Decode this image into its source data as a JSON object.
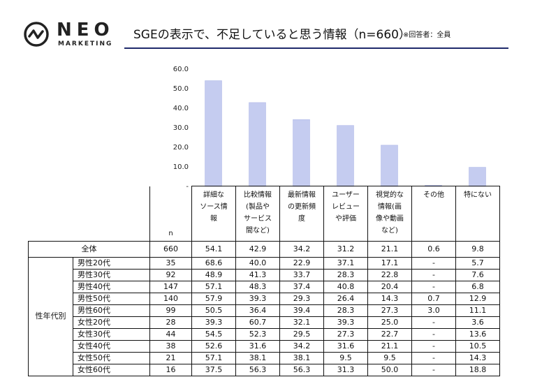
{
  "brand": {
    "name": "NEO",
    "sub": "MARKETING"
  },
  "title": "SGEの表示で、不足していると思う情報（n=660）",
  "note": "※回答者：全員",
  "colors": {
    "bar": "#c5ccf0",
    "bar_stroke": "#a9b3e6",
    "rule": "#1f2a6b"
  },
  "chart_data": {
    "type": "bar",
    "categories": [
      "詳細なソース情報",
      "比較情報(製品やサービス間など)",
      "最新情報の更新頻度",
      "ユーザーレビューや評価",
      "視覚的な情報(画像や動画など)",
      "その他",
      "特にない"
    ],
    "values": [
      54.1,
      42.9,
      34.2,
      31.2,
      21.1,
      0.6,
      9.8
    ],
    "ylim": [
      0,
      60
    ],
    "yticks": [
      "-",
      "10.0",
      "20.0",
      "30.0",
      "40.0",
      "50.0",
      "60.0"
    ],
    "xlabel": "",
    "ylabel": ""
  },
  "table": {
    "n_label": "n",
    "headers": [
      [
        "詳細な",
        "ソース情",
        "報"
      ],
      [
        "比較情報",
        "(製品や",
        "サービス",
        "間など)"
      ],
      [
        "最新情報",
        "の更新頻",
        "度"
      ],
      [
        "ユーザー",
        "レビュー",
        "や評価"
      ],
      [
        "視覚的な",
        "情報(画",
        "像や動画",
        "など)"
      ],
      [
        "その他"
      ],
      [
        "特にない"
      ]
    ],
    "total": {
      "label": "全体",
      "n": "660",
      "values": [
        "54.1",
        "42.9",
        "34.2",
        "31.2",
        "21.1",
        "0.6",
        "9.8"
      ]
    },
    "group_label": "性年代別",
    "rows": [
      {
        "label": "男性20代",
        "n": "35",
        "values": [
          "68.6",
          "40.0",
          "22.9",
          "37.1",
          "17.1",
          "-",
          "5.7"
        ]
      },
      {
        "label": "男性30代",
        "n": "92",
        "values": [
          "48.9",
          "41.3",
          "33.7",
          "28.3",
          "22.8",
          "-",
          "7.6"
        ]
      },
      {
        "label": "男性40代",
        "n": "147",
        "values": [
          "57.1",
          "48.3",
          "37.4",
          "40.8",
          "20.4",
          "-",
          "6.8"
        ]
      },
      {
        "label": "男性50代",
        "n": "140",
        "values": [
          "57.9",
          "39.3",
          "29.3",
          "26.4",
          "14.3",
          "0.7",
          "12.9"
        ]
      },
      {
        "label": "男性60代",
        "n": "99",
        "values": [
          "50.5",
          "36.4",
          "39.4",
          "28.3",
          "27.3",
          "3.0",
          "11.1"
        ]
      },
      {
        "label": "女性20代",
        "n": "28",
        "values": [
          "39.3",
          "60.7",
          "32.1",
          "39.3",
          "25.0",
          "-",
          "3.6"
        ]
      },
      {
        "label": "女性30代",
        "n": "44",
        "values": [
          "54.5",
          "52.3",
          "29.5",
          "27.3",
          "22.7",
          "-",
          "13.6"
        ]
      },
      {
        "label": "女性40代",
        "n": "38",
        "values": [
          "52.6",
          "31.6",
          "34.2",
          "31.6",
          "21.1",
          "-",
          "10.5"
        ]
      },
      {
        "label": "女性50代",
        "n": "21",
        "values": [
          "57.1",
          "38.1",
          "38.1",
          "9.5",
          "9.5",
          "-",
          "14.3"
        ]
      },
      {
        "label": "女性60代",
        "n": "16",
        "values": [
          "37.5",
          "56.3",
          "56.3",
          "31.3",
          "50.0",
          "-",
          "18.8"
        ]
      }
    ]
  }
}
